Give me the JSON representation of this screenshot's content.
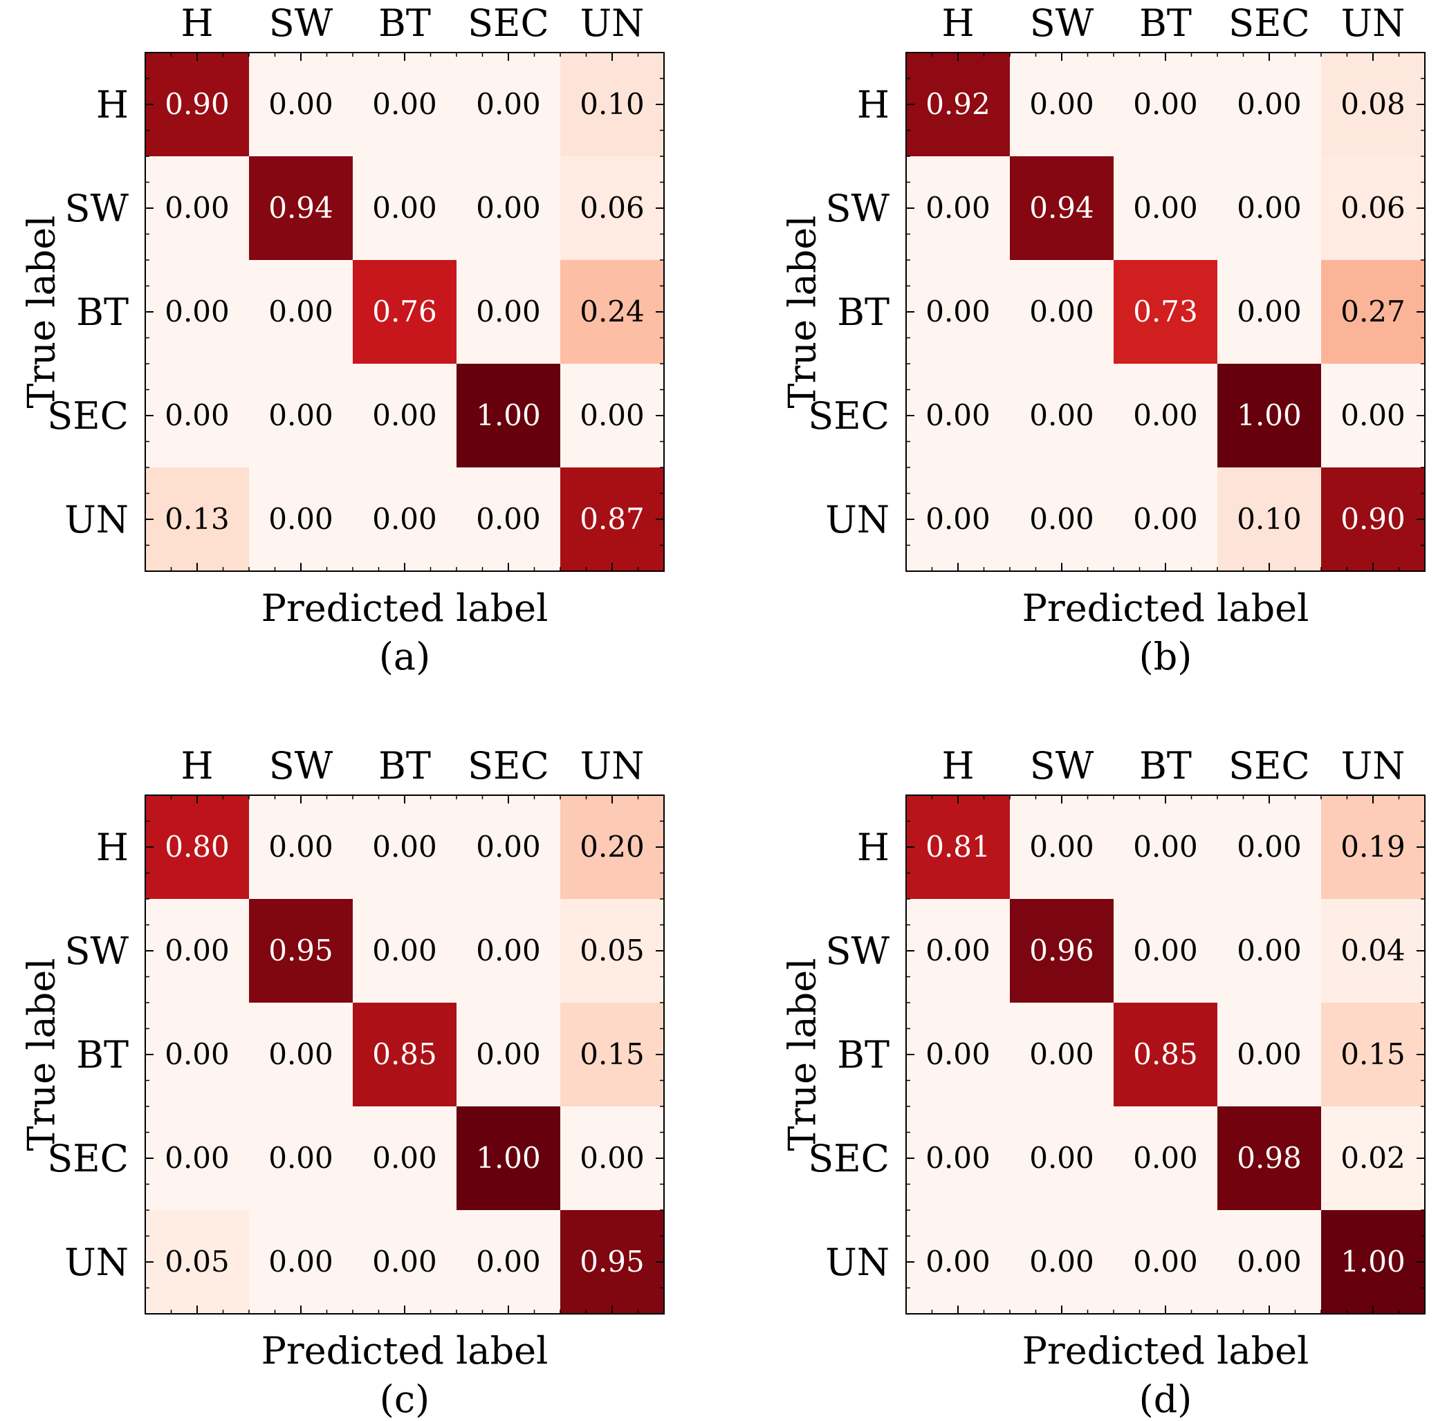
{
  "chart_data": [
    {
      "type": "heatmap",
      "panel_label": "(a)",
      "xlabel": "Predicted label",
      "ylabel": "True label",
      "x_categories": [
        "H",
        "SW",
        "BT",
        "SEC",
        "UN"
      ],
      "y_categories": [
        "H",
        "SW",
        "BT",
        "SEC",
        "UN"
      ],
      "values": [
        [
          0.9,
          0.0,
          0.0,
          0.0,
          0.1
        ],
        [
          0.0,
          0.94,
          0.0,
          0.0,
          0.06
        ],
        [
          0.0,
          0.0,
          0.76,
          0.0,
          0.24
        ],
        [
          0.0,
          0.0,
          0.0,
          1.0,
          0.0
        ],
        [
          0.13,
          0.0,
          0.0,
          0.0,
          0.87
        ]
      ],
      "colormap": "Reds",
      "value_range": [
        0,
        1
      ]
    },
    {
      "type": "heatmap",
      "panel_label": "(b)",
      "xlabel": "Predicted label",
      "ylabel": "True label",
      "x_categories": [
        "H",
        "SW",
        "BT",
        "SEC",
        "UN"
      ],
      "y_categories": [
        "H",
        "SW",
        "BT",
        "SEC",
        "UN"
      ],
      "values": [
        [
          0.92,
          0.0,
          0.0,
          0.0,
          0.08
        ],
        [
          0.0,
          0.94,
          0.0,
          0.0,
          0.06
        ],
        [
          0.0,
          0.0,
          0.73,
          0.0,
          0.27
        ],
        [
          0.0,
          0.0,
          0.0,
          1.0,
          0.0
        ],
        [
          0.0,
          0.0,
          0.0,
          0.1,
          0.9
        ]
      ],
      "colormap": "Reds",
      "value_range": [
        0,
        1
      ]
    },
    {
      "type": "heatmap",
      "panel_label": "(c)",
      "xlabel": "Predicted label",
      "ylabel": "True label",
      "x_categories": [
        "H",
        "SW",
        "BT",
        "SEC",
        "UN"
      ],
      "y_categories": [
        "H",
        "SW",
        "BT",
        "SEC",
        "UN"
      ],
      "values": [
        [
          0.8,
          0.0,
          0.0,
          0.0,
          0.2
        ],
        [
          0.0,
          0.95,
          0.0,
          0.0,
          0.05
        ],
        [
          0.0,
          0.0,
          0.85,
          0.0,
          0.15
        ],
        [
          0.0,
          0.0,
          0.0,
          1.0,
          0.0
        ],
        [
          0.05,
          0.0,
          0.0,
          0.0,
          0.95
        ]
      ],
      "colormap": "Reds",
      "value_range": [
        0,
        1
      ]
    },
    {
      "type": "heatmap",
      "panel_label": "(d)",
      "xlabel": "Predicted label",
      "ylabel": "True label",
      "x_categories": [
        "H",
        "SW",
        "BT",
        "SEC",
        "UN"
      ],
      "y_categories": [
        "H",
        "SW",
        "BT",
        "SEC",
        "UN"
      ],
      "values": [
        [
          0.81,
          0.0,
          0.0,
          0.0,
          0.19
        ],
        [
          0.0,
          0.96,
          0.0,
          0.0,
          0.04
        ],
        [
          0.0,
          0.0,
          0.85,
          0.0,
          0.15
        ],
        [
          0.0,
          0.0,
          0.0,
          0.98,
          0.02
        ],
        [
          0.0,
          0.0,
          0.0,
          0.0,
          1.0
        ]
      ],
      "colormap": "Reds",
      "value_range": [
        0,
        1
      ]
    }
  ]
}
